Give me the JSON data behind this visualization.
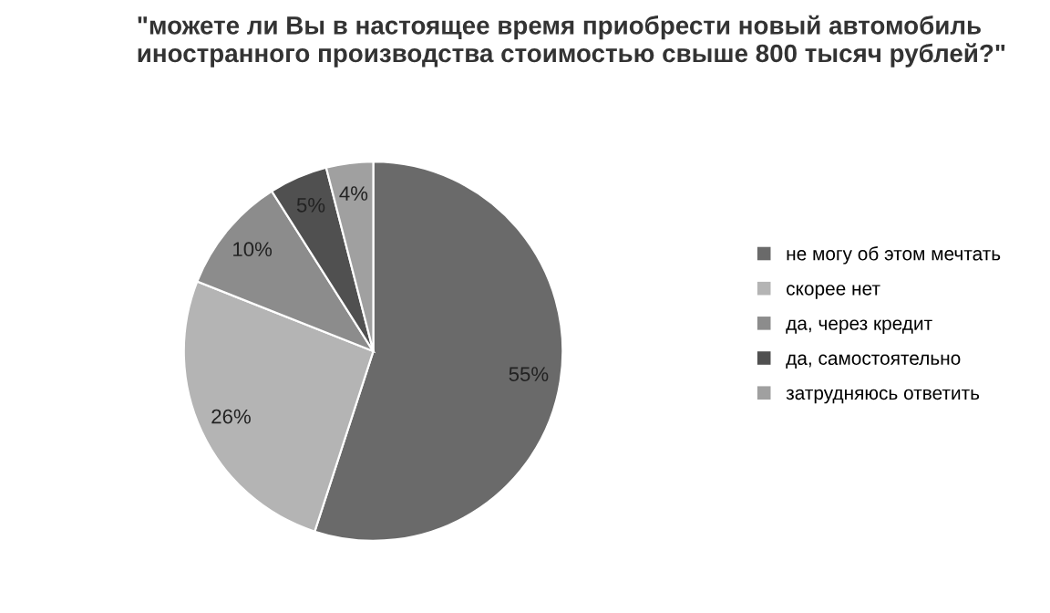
{
  "chart_data": {
    "type": "pie",
    "title": "\"можете ли Вы в настоящее время приобрести новый автомобиль\nиностранного производства стоимостью свыше 800 тысяч рублей?\"",
    "categories": [
      "не могу об этом мечтать",
      "скорее нет",
      "да, через кредит",
      "да, самостоятельно",
      "затрудняюсь ответить"
    ],
    "values": [
      55,
      26,
      10,
      5,
      4
    ],
    "colors": [
      "#6a6a6a",
      "#b4b4b4",
      "#8c8c8c",
      "#505050",
      "#a0a0a0"
    ],
    "value_labels": [
      "55%",
      "26%",
      "10%",
      "5%",
      "4%"
    ],
    "legend": "right"
  }
}
